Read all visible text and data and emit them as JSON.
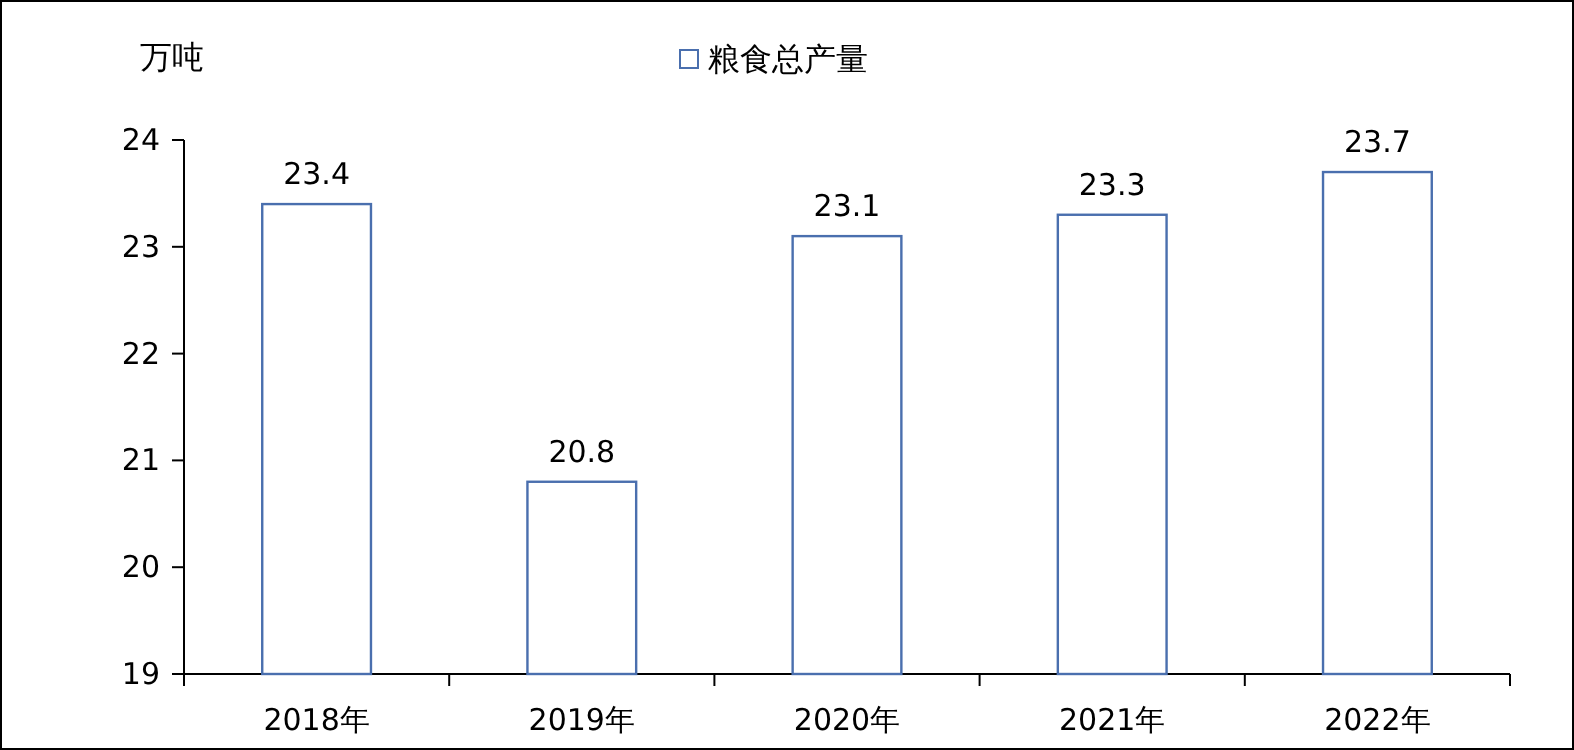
{
  "chart_data": {
    "type": "bar",
    "ylabel": "万吨",
    "categories": [
      "2018年",
      "2019年",
      "2020年",
      "2021年",
      "2022年"
    ],
    "series": [
      {
        "name": "粮食总产量",
        "color": "#4a6fae",
        "values": [
          23.4,
          20.8,
          23.1,
          23.3,
          23.7
        ]
      }
    ],
    "ylim": [
      19,
      24
    ],
    "yticks": [
      19,
      20,
      21,
      22,
      23,
      24
    ],
    "data_labels": true,
    "legend": "top",
    "grid": false
  }
}
